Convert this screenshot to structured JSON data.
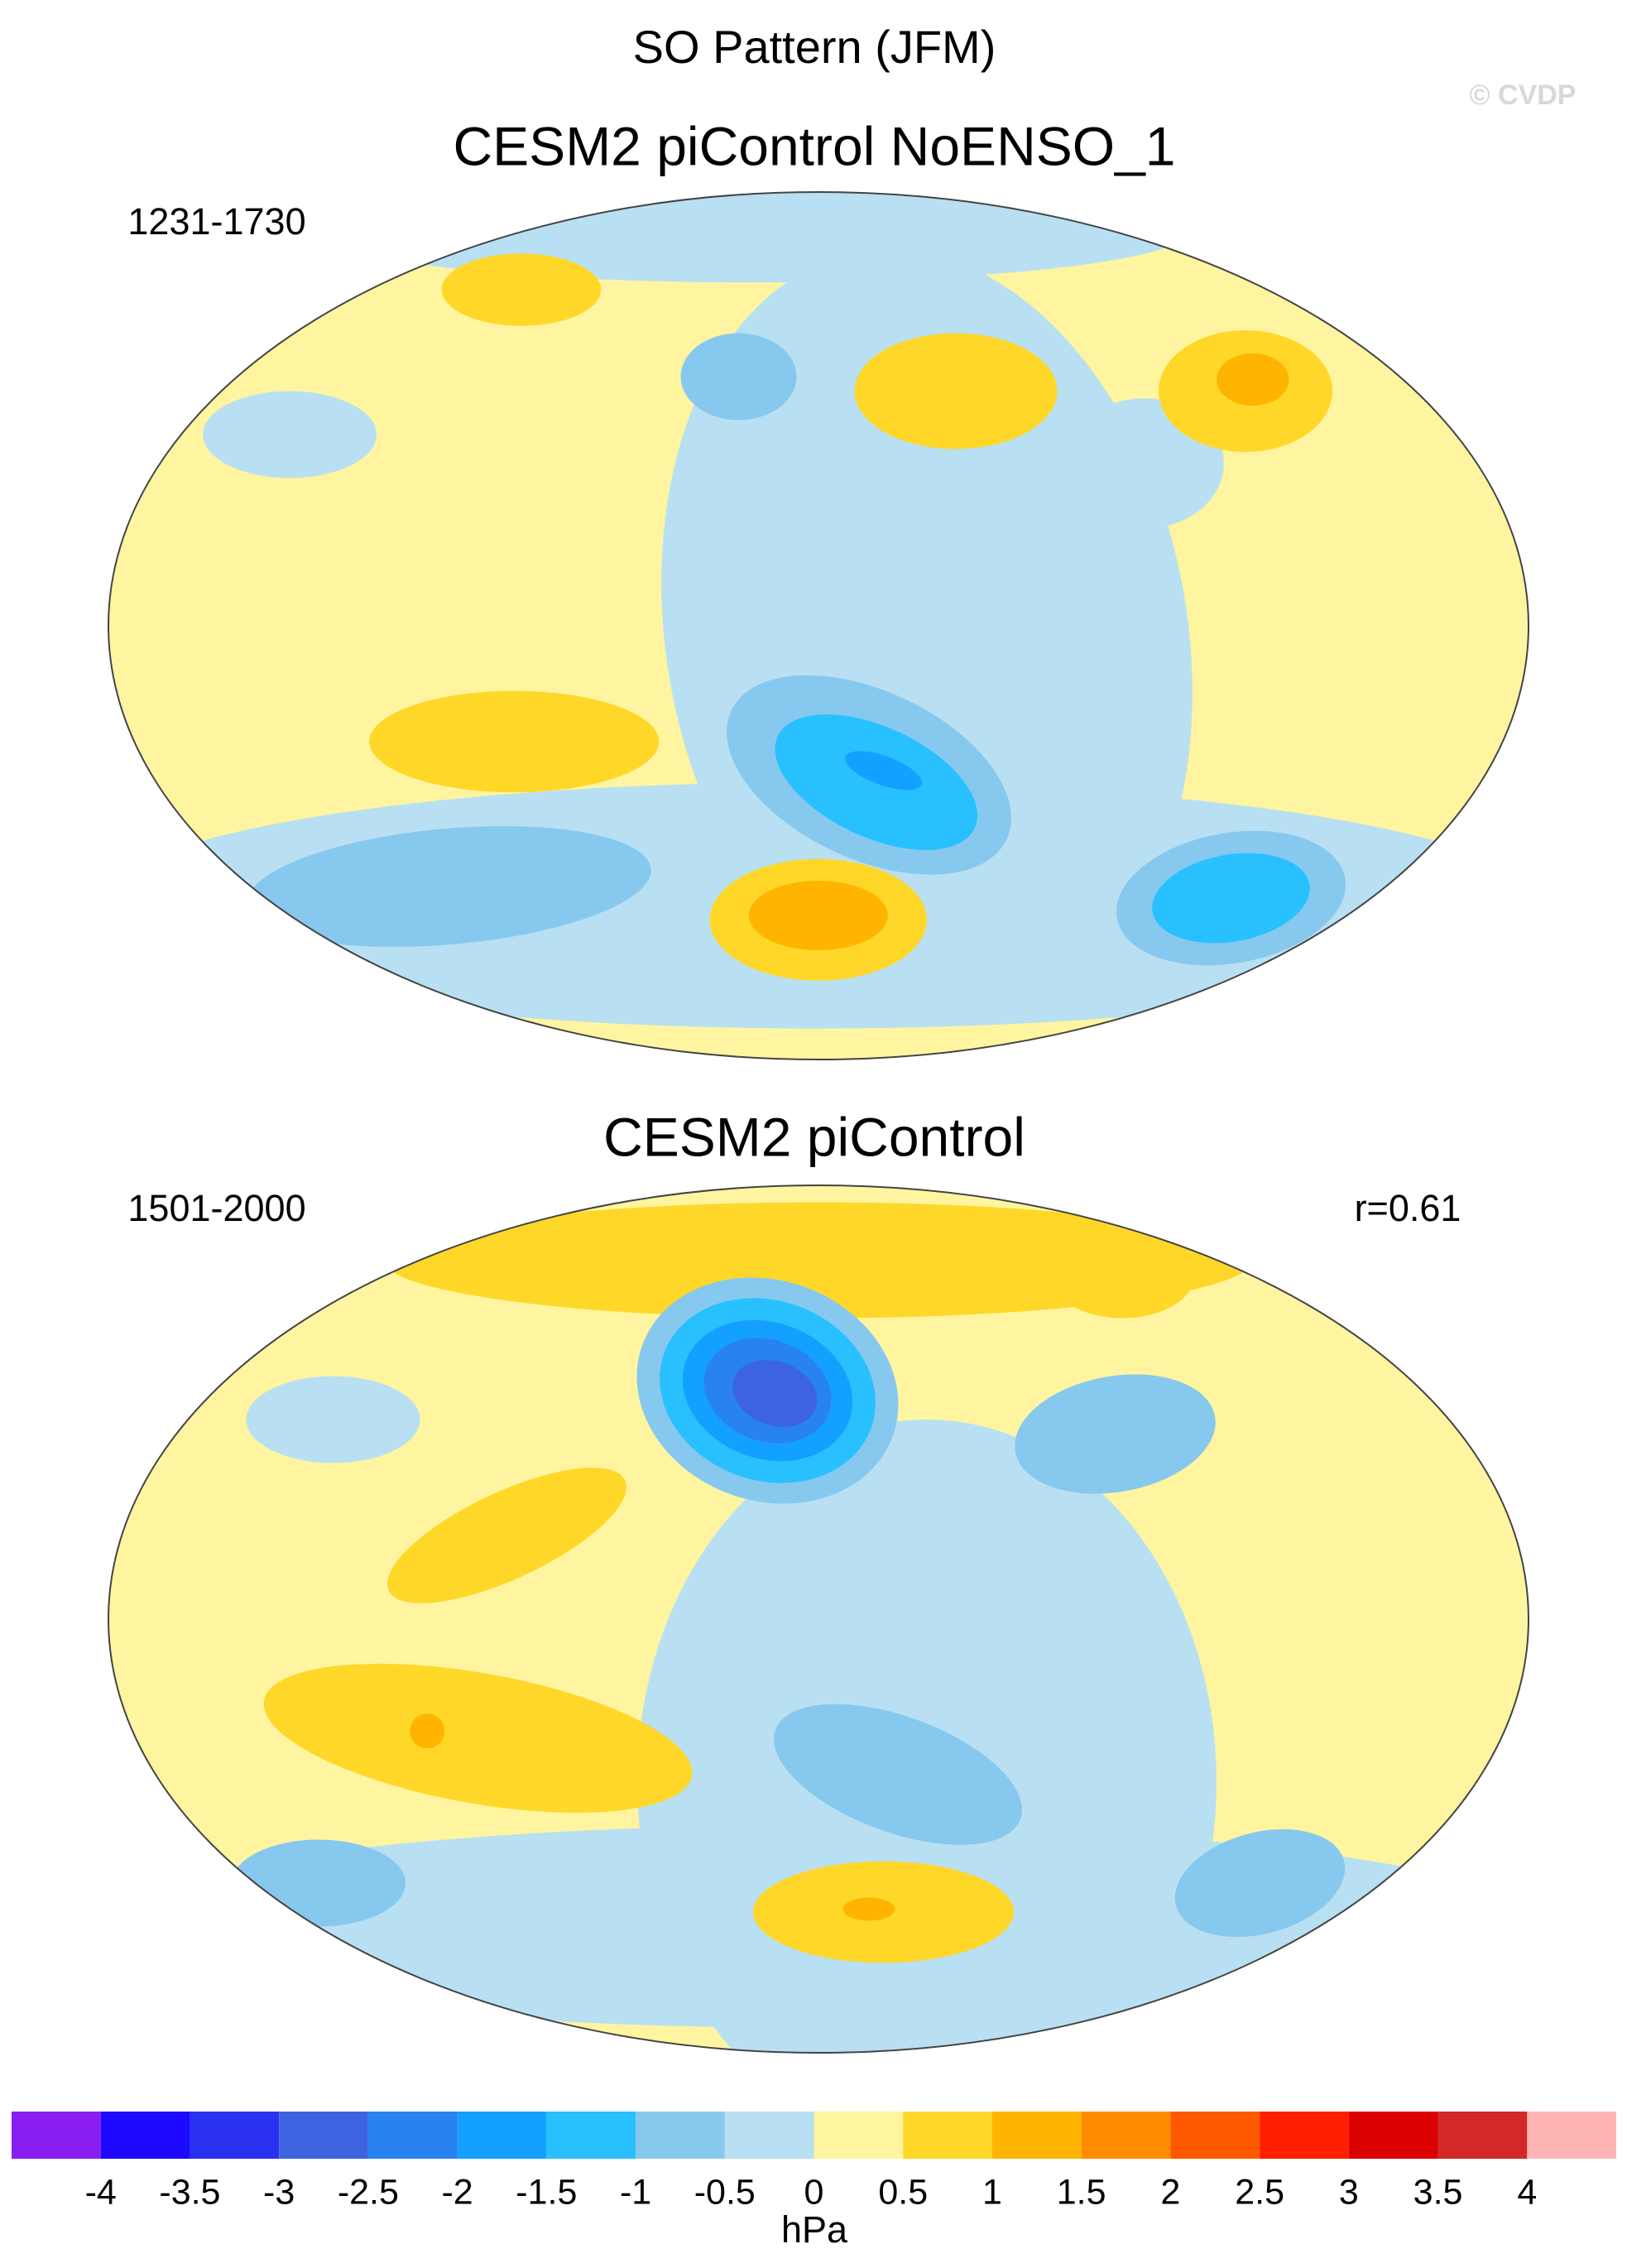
{
  "header": {
    "title": "SO Pattern (JFM)",
    "credit": "© CVDP"
  },
  "panels": [
    {
      "title": "CESM2 piControl NoENSO_1",
      "period": "1231-1730"
    },
    {
      "title": "CESM2 piControl",
      "period": "1501-2000",
      "correlation": "r=0.61"
    }
  ],
  "colorbar": {
    "label": "hPa",
    "ticks": [
      -4,
      -3.5,
      -3,
      -2.5,
      -2,
      -1.5,
      -1,
      -0.5,
      0,
      0.5,
      1,
      1.5,
      2,
      2.5,
      3,
      3.5,
      4
    ],
    "colors": [
      "#8a1ef0",
      "#1e0aff",
      "#2a32f0",
      "#3c64e0",
      "#2882f0",
      "#14a0ff",
      "#28c0ff",
      "#87c8ef",
      "#b8e0f2",
      "#fff5a0",
      "#ffd728",
      "#ffb400",
      "#ff8c00",
      "#ff5a00",
      "#ff1e00",
      "#dc0000",
      "#d22828",
      "#ffb4b4"
    ]
  }
}
